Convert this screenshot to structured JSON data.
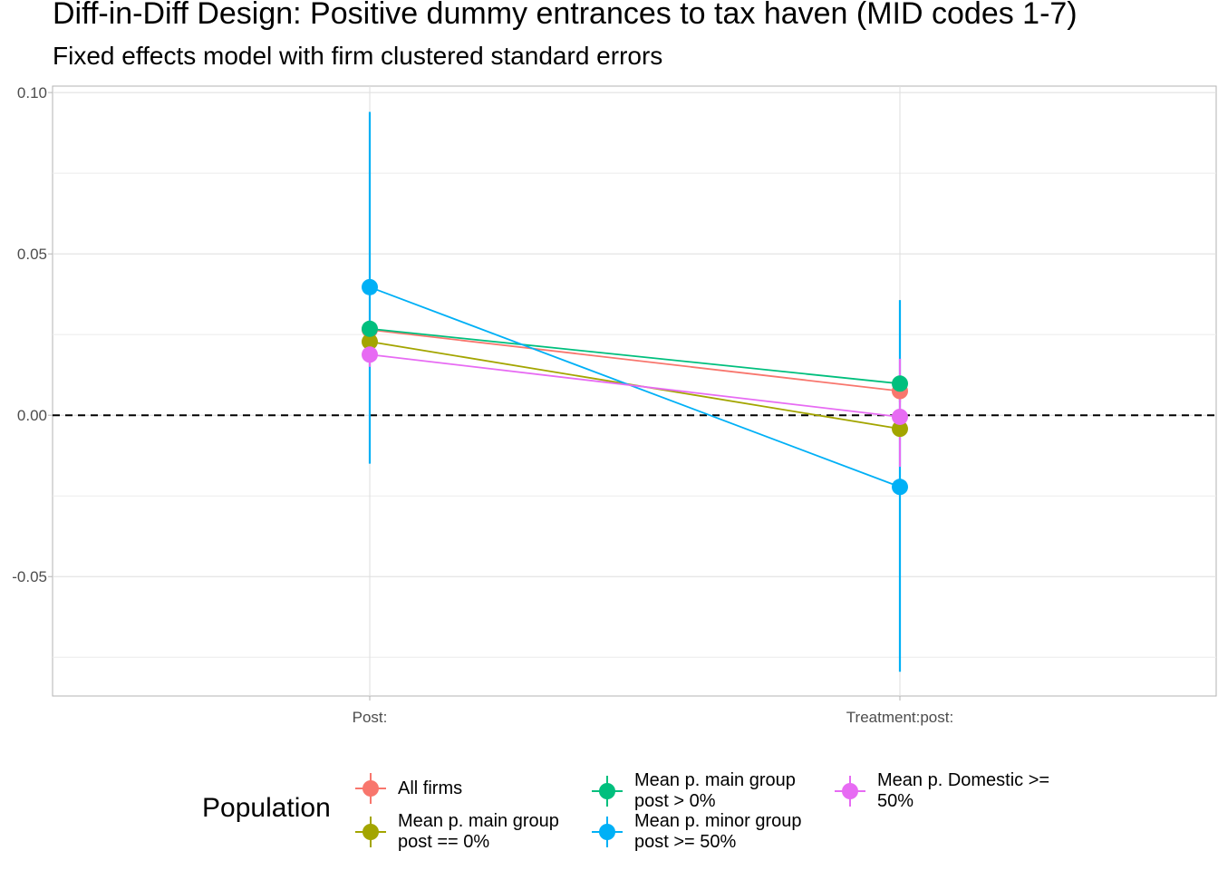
{
  "chart_data": {
    "type": "scatter",
    "title": "Diff-in-Diff Design: Positive dummy entrances to tax haven (MID codes 1-7)",
    "subtitle": "Fixed effects model with firm clustered standard errors",
    "categories": [
      "Post:",
      "Treatment:post:"
    ],
    "ylim": [
      -0.087,
      0.102
    ],
    "yticks": [
      0.1,
      0.05,
      0.0,
      -0.05
    ],
    "ytick_labels": [
      "0.10",
      "0.05",
      "0.00",
      "-0.05"
    ],
    "reference_line": {
      "y": 0,
      "style": "dashed"
    },
    "grid": true,
    "legend": {
      "title": "Population",
      "position": "bottom"
    },
    "series": [
      {
        "name": "All firms",
        "color": "#F8766D",
        "values": [
          0.0265,
          0.0075
        ],
        "lower": [
          0.0255,
          0.004
        ],
        "upper": [
          0.0275,
          0.011
        ]
      },
      {
        "name": "Mean p. main group post == 0%",
        "color": "#A3A500",
        "values": [
          0.0228,
          -0.0042
        ],
        "lower": [
          0.0218,
          -0.0062
        ],
        "upper": [
          0.0238,
          -0.0022
        ]
      },
      {
        "name": "Mean p. main group post > 0%",
        "color": "#00BF7D",
        "values": [
          0.0268,
          0.0098
        ],
        "lower": [
          0.0258,
          0.0088
        ],
        "upper": [
          0.0278,
          0.0108
        ]
      },
      {
        "name": "Mean p. minor group post >= 50%",
        "color": "#00B0F6",
        "values": [
          0.0397,
          -0.0222
        ],
        "lower": [
          -0.015,
          -0.0795
        ],
        "upper": [
          0.094,
          0.0357
        ]
      },
      {
        "name": "Mean p. Domestic >= 50%",
        "color": "#E76BF3",
        "values": [
          0.0188,
          -0.0005
        ],
        "lower": [
          0.015,
          -0.016
        ],
        "upper": [
          0.0225,
          0.0175
        ]
      }
    ]
  },
  "legend_labels": {
    "all": "All firms",
    "main0": "Mean p. main group\npost == 0%",
    "maingt": "Mean p. main group\npost > 0%",
    "minor": "Mean p. minor group\npost >= 50%",
    "domestic": "Mean p. Domestic >=\n50%"
  }
}
